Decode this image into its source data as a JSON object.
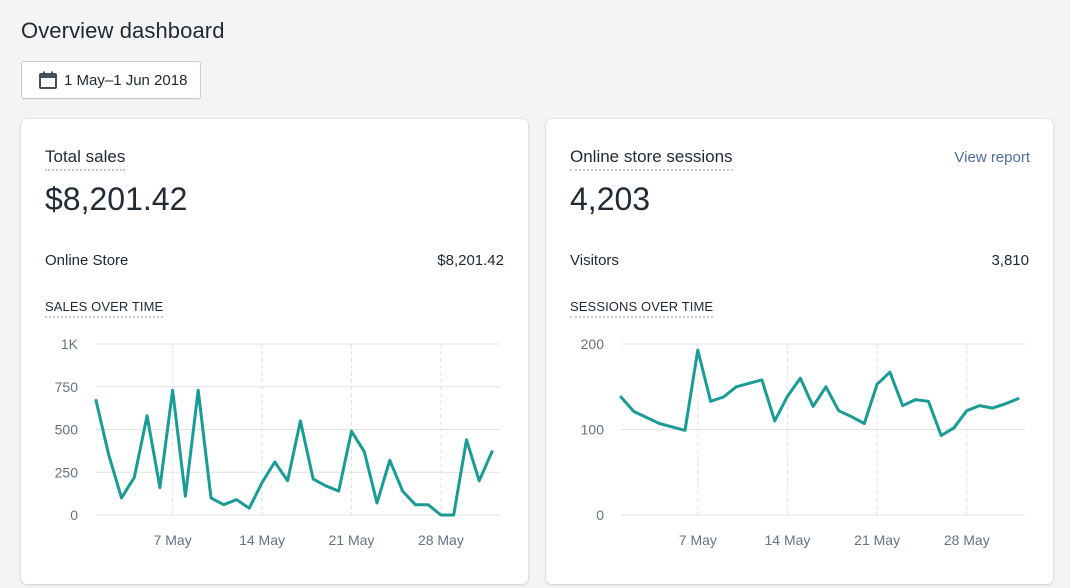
{
  "page": {
    "title": "Overview dashboard"
  },
  "date_range": {
    "label": "1 May–1 Jun 2018",
    "icon": "calendar-icon"
  },
  "sales_card": {
    "title": "Total sales",
    "value": "$8,201.42",
    "row_label": "Online Store",
    "row_value": "$8,201.42",
    "section_title": "SALES OVER TIME"
  },
  "sessions_card": {
    "title": "Online store sessions",
    "link": "View report",
    "value": "4,203",
    "row_label": "Visitors",
    "row_value": "3,810",
    "section_title": "SESSIONS OVER TIME"
  },
  "colors": {
    "line": "#1a9b96",
    "grid": "#dfe3e8",
    "link": "#4f6c9c"
  },
  "chart_data": [
    {
      "type": "line",
      "title": "SALES OVER TIME",
      "x": [
        "1 May",
        "2 May",
        "3 May",
        "4 May",
        "5 May",
        "6 May",
        "7 May",
        "8 May",
        "9 May",
        "10 May",
        "11 May",
        "12 May",
        "13 May",
        "14 May",
        "15 May",
        "16 May",
        "17 May",
        "18 May",
        "19 May",
        "20 May",
        "21 May",
        "22 May",
        "23 May",
        "24 May",
        "25 May",
        "26 May",
        "27 May",
        "28 May",
        "29 May",
        "30 May",
        "31 May",
        "1 Jun"
      ],
      "xticks": [
        "7 May",
        "14 May",
        "21 May",
        "28 May"
      ],
      "xtick_indices": [
        6,
        13,
        20,
        27
      ],
      "yticks": [
        "0",
        "250",
        "500",
        "750",
        "1K"
      ],
      "ytick_values": [
        0,
        250,
        500,
        750,
        1000
      ],
      "ylim": [
        0,
        1000
      ],
      "grid": true,
      "series": [
        {
          "values": [
            670,
            350,
            100,
            220,
            580,
            160,
            730,
            110,
            730,
            100,
            60,
            90,
            40,
            190,
            310,
            200,
            550,
            210,
            170,
            140,
            490,
            370,
            70,
            320,
            140,
            60,
            60,
            0,
            0,
            440,
            200,
            370
          ]
        }
      ]
    },
    {
      "type": "line",
      "title": "SESSIONS OVER TIME",
      "x": [
        "1 May",
        "2 May",
        "3 May",
        "4 May",
        "5 May",
        "6 May",
        "7 May",
        "8 May",
        "9 May",
        "10 May",
        "11 May",
        "12 May",
        "13 May",
        "14 May",
        "15 May",
        "16 May",
        "17 May",
        "18 May",
        "19 May",
        "20 May",
        "21 May",
        "22 May",
        "23 May",
        "24 May",
        "25 May",
        "26 May",
        "27 May",
        "28 May",
        "29 May",
        "30 May",
        "31 May",
        "1 Jun"
      ],
      "xticks": [
        "7 May",
        "14 May",
        "21 May",
        "28 May"
      ],
      "xtick_indices": [
        6,
        13,
        20,
        27
      ],
      "yticks": [
        "0",
        "100",
        "200"
      ],
      "ytick_values": [
        0,
        100,
        200
      ],
      "ylim": [
        0,
        200
      ],
      "grid": true,
      "series": [
        {
          "values": [
            138,
            121,
            114,
            107,
            103,
            99,
            193,
            133,
            138,
            150,
            154,
            158,
            110,
            139,
            160,
            127,
            150,
            122,
            115,
            107,
            153,
            167,
            128,
            135,
            133,
            93,
            102,
            122,
            128,
            125,
            130,
            136
          ]
        }
      ]
    }
  ]
}
